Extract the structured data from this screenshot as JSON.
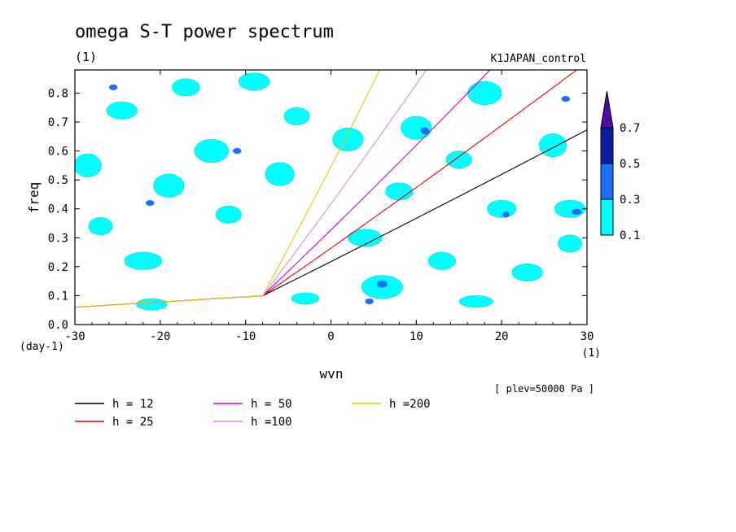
{
  "chart_data": {
    "type": "heatmap",
    "title": "omega S-T power spectrum",
    "units_left": "(1)",
    "experiment": "K1JAPAN_control",
    "xlabel": "wvn",
    "ylabel": "freq",
    "x_unit": "(1)",
    "y_unit": "(day-1)",
    "xlim": [
      -30,
      30
    ],
    "ylim": [
      0,
      0.88
    ],
    "xticks": [
      -30,
      -20,
      -10,
      0,
      10,
      20,
      30
    ],
    "yticks": [
      0.0,
      0.1,
      0.2,
      0.3,
      0.4,
      0.5,
      0.6,
      0.7,
      0.8
    ],
    "xtick_labels": [
      "-30",
      "-20",
      "-10",
      "0",
      "10",
      "20",
      "30"
    ],
    "ytick_labels": [
      "0.0",
      "0.1",
      "0.2",
      "0.3",
      "0.4",
      "0.5",
      "0.6",
      "0.7",
      "0.8"
    ],
    "annotation": "[ plev=50000 Pa ]",
    "colorbar": {
      "levels": [
        "0.1",
        "0.3",
        "0.5",
        "0.7"
      ],
      "colors": [
        "#00ffff",
        "#1e6eff",
        "#0a1ea0",
        "#4b0fa0"
      ]
    },
    "blobs": [
      {
        "x": -28.5,
        "y": 0.55,
        "rx": 1.6,
        "ry": 0.04,
        "level": 1
      },
      {
        "x": -24.5,
        "y": 0.74,
        "rx": 1.8,
        "ry": 0.03,
        "level": 1
      },
      {
        "x": -27,
        "y": 0.34,
        "rx": 1.4,
        "ry": 0.03,
        "level": 1
      },
      {
        "x": -22,
        "y": 0.22,
        "rx": 2.2,
        "ry": 0.03,
        "level": 1
      },
      {
        "x": -19,
        "y": 0.48,
        "rx": 1.8,
        "ry": 0.04,
        "level": 1
      },
      {
        "x": -17,
        "y": 0.82,
        "rx": 1.6,
        "ry": 0.03,
        "level": 1
      },
      {
        "x": -14,
        "y": 0.6,
        "rx": 2.0,
        "ry": 0.04,
        "level": 1
      },
      {
        "x": -12,
        "y": 0.38,
        "rx": 1.5,
        "ry": 0.03,
        "level": 1
      },
      {
        "x": -9,
        "y": 0.84,
        "rx": 1.8,
        "ry": 0.03,
        "level": 1
      },
      {
        "x": -6,
        "y": 0.52,
        "rx": 1.7,
        "ry": 0.04,
        "level": 1
      },
      {
        "x": -4,
        "y": 0.72,
        "rx": 1.5,
        "ry": 0.03,
        "level": 1
      },
      {
        "x": 2,
        "y": 0.64,
        "rx": 1.8,
        "ry": 0.04,
        "level": 1
      },
      {
        "x": 4,
        "y": 0.3,
        "rx": 2.0,
        "ry": 0.03,
        "level": 1
      },
      {
        "x": 6,
        "y": 0.13,
        "rx": 2.4,
        "ry": 0.04,
        "level": 1
      },
      {
        "x": 8,
        "y": 0.46,
        "rx": 1.6,
        "ry": 0.03,
        "level": 1
      },
      {
        "x": 10,
        "y": 0.68,
        "rx": 1.8,
        "ry": 0.04,
        "level": 1
      },
      {
        "x": 13,
        "y": 0.22,
        "rx": 1.6,
        "ry": 0.03,
        "level": 1
      },
      {
        "x": 15,
        "y": 0.57,
        "rx": 1.5,
        "ry": 0.03,
        "level": 1
      },
      {
        "x": 18,
        "y": 0.8,
        "rx": 2.0,
        "ry": 0.04,
        "level": 1
      },
      {
        "x": 20,
        "y": 0.4,
        "rx": 1.7,
        "ry": 0.03,
        "level": 1
      },
      {
        "x": 23,
        "y": 0.18,
        "rx": 1.8,
        "ry": 0.03,
        "level": 1
      },
      {
        "x": 26,
        "y": 0.62,
        "rx": 1.6,
        "ry": 0.04,
        "level": 1
      },
      {
        "x": 28,
        "y": 0.4,
        "rx": 1.8,
        "ry": 0.03,
        "level": 1
      },
      {
        "x": 28,
        "y": 0.28,
        "rx": 1.4,
        "ry": 0.03,
        "level": 1
      },
      {
        "x": -21,
        "y": 0.07,
        "rx": 1.8,
        "ry": 0.02,
        "level": 1
      },
      {
        "x": -3,
        "y": 0.09,
        "rx": 1.6,
        "ry": 0.02,
        "level": 1
      },
      {
        "x": 17,
        "y": 0.08,
        "rx": 2.0,
        "ry": 0.02,
        "level": 1
      },
      {
        "x": -25.5,
        "y": 0.82,
        "rx": 0.5,
        "ry": 0.01,
        "level": 2
      },
      {
        "x": -21.2,
        "y": 0.42,
        "rx": 0.5,
        "ry": 0.01,
        "level": 2
      },
      {
        "x": -11,
        "y": 0.6,
        "rx": 0.5,
        "ry": 0.01,
        "level": 2
      },
      {
        "x": 6,
        "y": 0.14,
        "rx": 0.6,
        "ry": 0.012,
        "level": 2
      },
      {
        "x": 4.5,
        "y": 0.08,
        "rx": 0.5,
        "ry": 0.01,
        "level": 2
      },
      {
        "x": 11,
        "y": 0.67,
        "rx": 0.5,
        "ry": 0.012,
        "level": 2
      },
      {
        "x": 28.8,
        "y": 0.39,
        "rx": 0.6,
        "ry": 0.01,
        "level": 2
      },
      {
        "x": 27.5,
        "y": 0.78,
        "rx": 0.5,
        "ry": 0.01,
        "level": 2
      },
      {
        "x": 20.5,
        "y": 0.38,
        "rx": 0.4,
        "ry": 0.01,
        "level": 2
      }
    ],
    "series": [
      {
        "name": "h = 12",
        "h": 12,
        "color": "#000000"
      },
      {
        "name": "h = 25",
        "h": 25,
        "color": "#e60000"
      },
      {
        "name": "h = 50",
        "h": 50,
        "color": "#d200c8"
      },
      {
        "name": "h =100",
        "h": 100,
        "color": "#dc8cdc"
      },
      {
        "name": "h =200",
        "h": 200,
        "color": "#e6c800"
      }
    ]
  }
}
